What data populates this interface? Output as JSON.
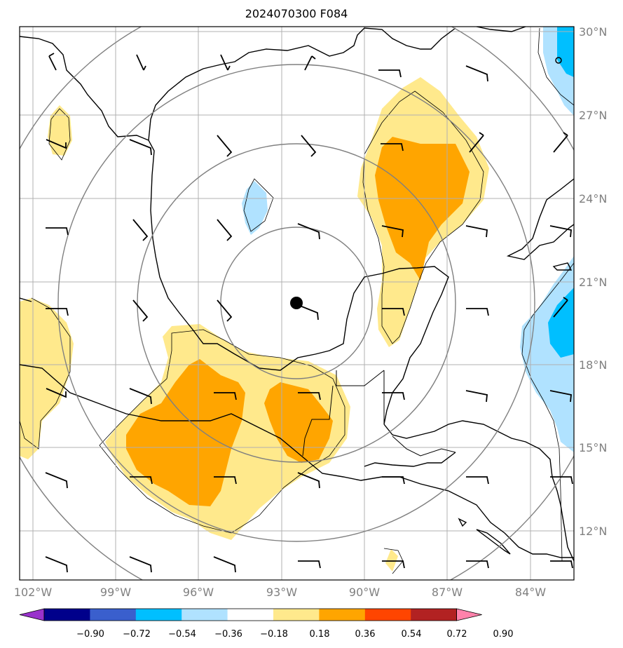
{
  "title": "2024070300 F084",
  "lat_labels": [
    "30°N",
    "27°N",
    "24°N",
    "21°N",
    "18°N",
    "15°N",
    "12°N"
  ],
  "lon_labels": [
    "102°W",
    "99°W",
    "96°W",
    "93°W",
    "90°W",
    "87°W",
    "84°W"
  ],
  "colorbar": {
    "ticks": [
      "−0.90",
      "−0.72",
      "−0.54",
      "−0.36",
      "−0.18",
      "0.18",
      "0.36",
      "0.54",
      "0.72",
      "0.90"
    ],
    "colors": [
      "#9932cc",
      "#00008b",
      "#3a5fcd",
      "#00bfff",
      "#b0e2ff",
      "#ffffff",
      "#ffe98c",
      "#ffa500",
      "#ff4500",
      "#b22222",
      "#ff82ab"
    ]
  },
  "shading": {
    "light_yellow": "#ffe98c",
    "orange": "#ffa500",
    "light_blue": "#b0e2ff",
    "blue": "#00bfff"
  },
  "storm_center_marker": "filled-circle"
}
